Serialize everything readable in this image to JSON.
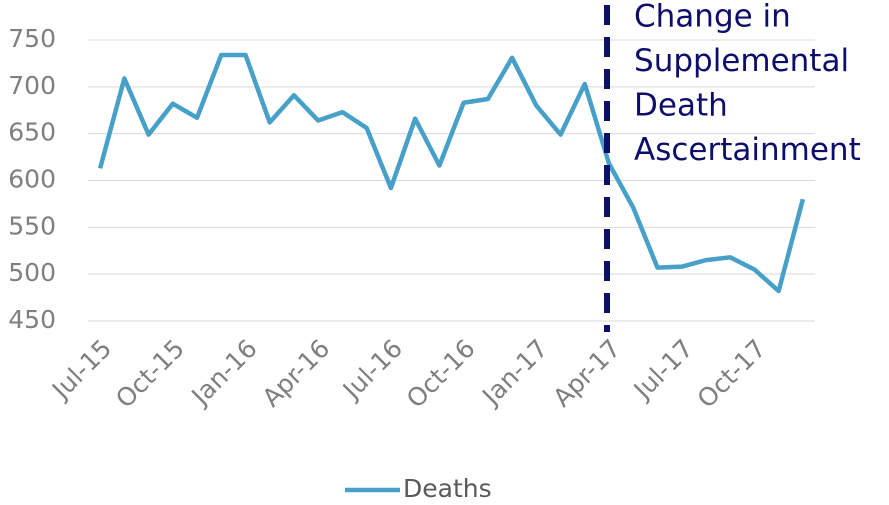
{
  "chart_data": {
    "type": "line",
    "categories": [
      "Jul-15",
      null,
      null,
      "Oct-15",
      null,
      null,
      "Jan-16",
      null,
      null,
      "Apr-16",
      null,
      null,
      "Jul-16",
      null,
      null,
      "Oct-16",
      null,
      null,
      "Jan-17",
      null,
      null,
      "Apr-17",
      null,
      null,
      "Jul-17",
      null,
      null,
      "Oct-17",
      null,
      null
    ],
    "series": [
      {
        "name": "Deaths",
        "color": "#47a0c8",
        "values": [
          613,
          709,
          649,
          682,
          667,
          734,
          734,
          662,
          691,
          664,
          673,
          656,
          592,
          666,
          616,
          683,
          687,
          731,
          680,
          649,
          703,
          618,
          571,
          507,
          508,
          515,
          518,
          505,
          482,
          580
        ]
      }
    ],
    "ylim": [
      450,
      750
    ],
    "yticks": [
      450,
      500,
      550,
      600,
      650,
      700,
      750
    ],
    "grid": true,
    "legend": "bottom",
    "annotation": {
      "lines": [
        "Change in",
        "Supplemental",
        "Death",
        "Ascertainment"
      ],
      "at": "Apr-17",
      "color": "#0d0d6b"
    }
  }
}
